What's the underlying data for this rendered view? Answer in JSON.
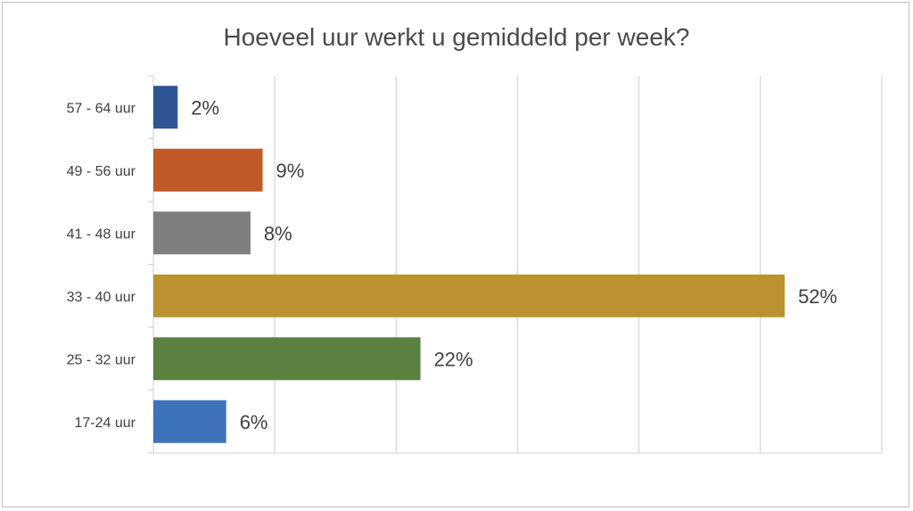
{
  "chart_data": {
    "type": "bar",
    "orientation": "horizontal",
    "title": "Hoeveel uur werkt u gemiddeld per week?",
    "categories": [
      "57 - 64 uur",
      "49 - 56 uur",
      "41 - 48 uur",
      "33 - 40 uur",
      "25 - 32 uur",
      "17-24 uur"
    ],
    "values": [
      2,
      9,
      8,
      52,
      22,
      6
    ],
    "data_labels": [
      "2%",
      "9%",
      "8%",
      "52%",
      "22%",
      "6%"
    ],
    "colors": [
      "#2f5597",
      "#c05a28",
      "#7f7f7f",
      "#bb922f",
      "#5b8140",
      "#3f73b9"
    ],
    "xlim": [
      0,
      60
    ],
    "x_gridlines": [
      0,
      10,
      20,
      30,
      40,
      50,
      60
    ],
    "grid": true,
    "legend": "none",
    "xlabel": "",
    "ylabel": ""
  }
}
